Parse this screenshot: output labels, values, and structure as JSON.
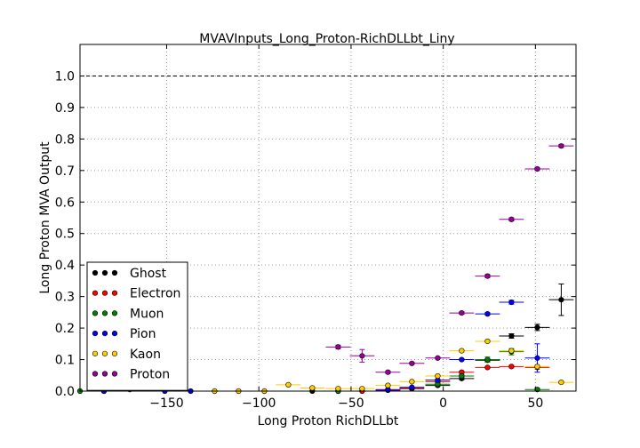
{
  "chart_data": {
    "type": "scatter",
    "title": "MVAVInputs_Long_Proton-RichDLLbt_Liny",
    "xlabel": "Long Proton RichDLLbt",
    "ylabel": "Long Proton MVA Output",
    "xlim": [
      -197,
      72
    ],
    "ylim": [
      0,
      1.1
    ],
    "x_ticks": [
      -150,
      -100,
      -50,
      0,
      50
    ],
    "x_tick_labels": [
      "−150",
      "−100",
      "−50",
      "0",
      "50"
    ],
    "y_ticks": [
      0.0,
      0.1,
      0.2,
      0.3,
      0.4,
      0.5,
      0.6,
      0.7,
      0.8,
      0.9,
      1.0
    ],
    "y_tick_labels": [
      "0.0",
      "0.1",
      "0.2",
      "0.3",
      "0.4",
      "0.5",
      "0.6",
      "0.7",
      "0.8",
      "0.9",
      "1.0"
    ],
    "reference_line": 1.0,
    "grid": true,
    "legend_position": "lower-left",
    "series": [
      {
        "name": "Ghost",
        "color": "#000000",
        "xerr": 6.7,
        "points": [
          [
            -184,
            0.0,
            0
          ],
          [
            -71,
            0.0,
            0
          ],
          [
            -30,
            0.003,
            0.002
          ],
          [
            -17,
            0.008,
            0.003
          ],
          [
            -3,
            0.018,
            0.003
          ],
          [
            10,
            0.04,
            0.004
          ],
          [
            24,
            0.098,
            0.005
          ],
          [
            37,
            0.175,
            0.007
          ],
          [
            51,
            0.202,
            0.01
          ],
          [
            64,
            0.29,
            0.05
          ]
        ]
      },
      {
        "name": "Electron",
        "color": "#ff0000",
        "xerr": 6.7,
        "points": [
          [
            -57,
            0.0,
            0
          ],
          [
            -44,
            0.0,
            0
          ],
          [
            -30,
            0.005,
            0.002
          ],
          [
            -17,
            0.01,
            0.002
          ],
          [
            -3,
            0.03,
            0.003
          ],
          [
            10,
            0.06,
            0.003
          ],
          [
            24,
            0.075,
            0.003
          ],
          [
            37,
            0.078,
            0.004
          ],
          [
            51,
            0.075,
            0.004
          ]
        ]
      },
      {
        "name": "Muon",
        "color": "#008000",
        "xerr": 6.7,
        "points": [
          [
            -197,
            0.0,
            0
          ],
          [
            -57,
            0.0,
            0
          ],
          [
            -3,
            0.022,
            0.004
          ],
          [
            10,
            0.048,
            0.005
          ],
          [
            24,
            0.1,
            0.008
          ],
          [
            37,
            0.125,
            0.01
          ],
          [
            51,
            0.005,
            0.005
          ]
        ]
      },
      {
        "name": "Pion",
        "color": "#0000ff",
        "xerr": 6.7,
        "points": [
          [
            -184,
            0.0,
            0
          ],
          [
            -151,
            0.0,
            0
          ],
          [
            -137,
            0.0,
            0
          ],
          [
            -30,
            0.003,
            0.002
          ],
          [
            -17,
            0.012,
            0.002
          ],
          [
            -3,
            0.035,
            0.002
          ],
          [
            10,
            0.1,
            0.003
          ],
          [
            24,
            0.245,
            0.004
          ],
          [
            37,
            0.282,
            0.006
          ],
          [
            51,
            0.105,
            0.045
          ]
        ]
      },
      {
        "name": "Kaon",
        "color": "#ffcc00",
        "xerr": 6.7,
        "points": [
          [
            -170,
            0.005,
            0.002
          ],
          [
            -124,
            0.0,
            0
          ],
          [
            -111,
            0.0,
            0
          ],
          [
            -97,
            0.0,
            0
          ],
          [
            -84,
            0.02,
            0.004
          ],
          [
            -71,
            0.01,
            0.003
          ],
          [
            -57,
            0.008,
            0.002
          ],
          [
            -44,
            0.008,
            0.002
          ],
          [
            -30,
            0.018,
            0.002
          ],
          [
            -17,
            0.03,
            0.002
          ],
          [
            -3,
            0.048,
            0.002
          ],
          [
            10,
            0.128,
            0.003
          ],
          [
            24,
            0.158,
            0.003
          ],
          [
            37,
            0.128,
            0.004
          ],
          [
            51,
            0.078,
            0.006
          ],
          [
            64,
            0.028,
            0.004
          ]
        ]
      },
      {
        "name": "Proton",
        "color": "#990099",
        "xerr": 6.7,
        "points": [
          [
            -57,
            0.14,
            0.006
          ],
          [
            -44,
            0.112,
            0.02
          ],
          [
            -30,
            0.06,
            0.004
          ],
          [
            -17,
            0.088,
            0.003
          ],
          [
            -3,
            0.105,
            0.003
          ],
          [
            10,
            0.248,
            0.004
          ],
          [
            24,
            0.365,
            0.005
          ],
          [
            37,
            0.545,
            0.005
          ],
          [
            51,
            0.705,
            0.005
          ],
          [
            64,
            0.778,
            0.005
          ]
        ]
      }
    ]
  }
}
